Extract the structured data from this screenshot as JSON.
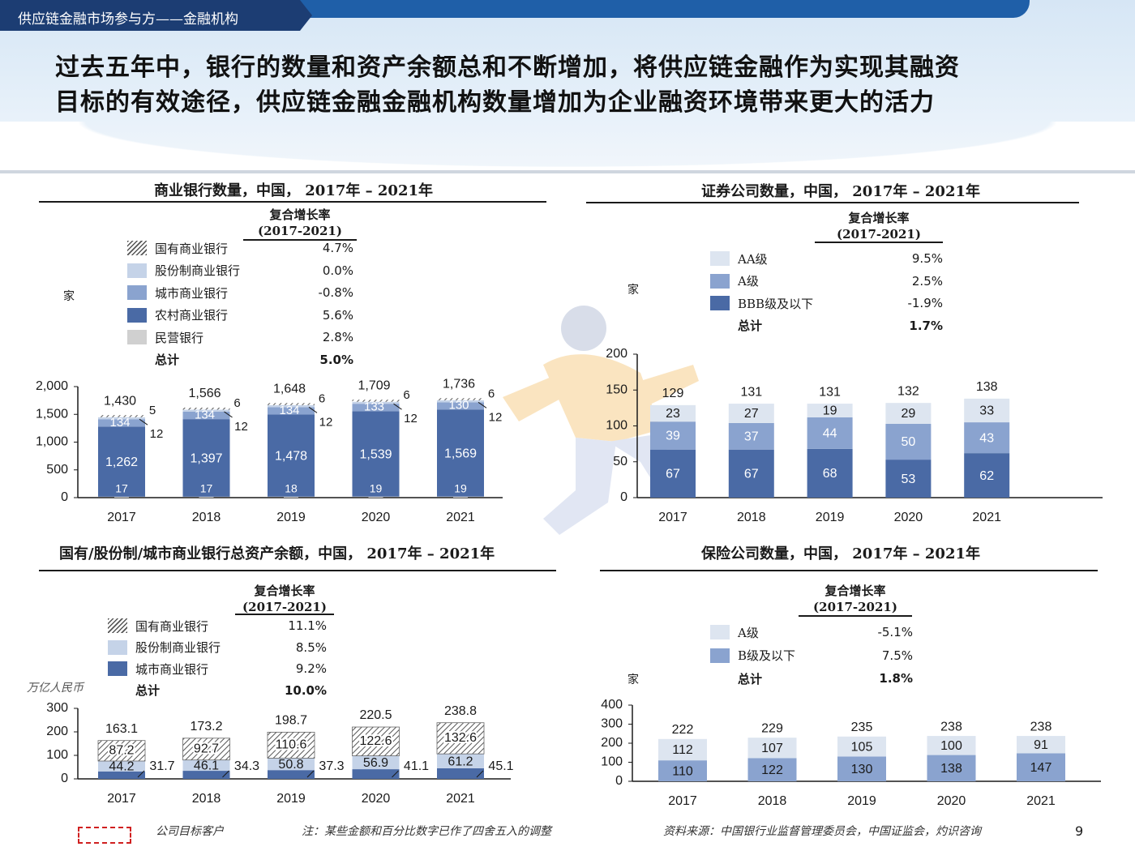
{
  "header": {
    "section": "供应链金融市场参与方——金融机构"
  },
  "headline": {
    "line1": "过去五年中，银行的数量和资产余额总和不断增加，将供应链金融作为实现其融资",
    "line2": "目标的有效途径，供应链金融金融机构数量增加为企业融资环境带来更大的活力"
  },
  "colors": {
    "dark": "#4a6aa5",
    "mid": "#8aa3cf",
    "light": "#c5d3e8",
    "lightest": "#dde5f0",
    "grey": "#d0d0d0",
    "header": "#1c3d73"
  },
  "panels": {
    "banks": {
      "cagr_head": "复合增长率",
      "cagr_period": "(2017-2021)",
      "unit": "家",
      "legend": [
        {
          "label": "国有商业银行",
          "value": "4.7%",
          "swatch": "hatch"
        },
        {
          "label": "股份制商业银行",
          "value": "0.0%",
          "swatch": "#c5d3e8"
        },
        {
          "label": "城市商业银行",
          "value": "-0.8%",
          "swatch": "#8aa3cf"
        },
        {
          "label": "农村商业银行",
          "value": "5.6%",
          "swatch": "#4a6aa5"
        },
        {
          "label": "民营银行",
          "value": "2.8%",
          "swatch": "#d0d0d0"
        },
        {
          "label": "总计",
          "value": "5.0%",
          "swatch": "none"
        }
      ]
    },
    "securities": {
      "cagr_head": "复合增长率",
      "cagr_period": "(2017-2021)",
      "unit": "家",
      "legend": [
        {
          "label": "AA级",
          "value": "9.5%",
          "swatch": "#dde5f0"
        },
        {
          "label": "A级",
          "value": "2.5%",
          "swatch": "#8aa3cf"
        },
        {
          "label": "BBB级及以下",
          "value": "-1.9%",
          "swatch": "#4a6aa5"
        },
        {
          "label": "总计",
          "value": "1.7%",
          "swatch": "none"
        }
      ]
    },
    "assets": {
      "cagr_head": "复合增长率",
      "cagr_period": "(2017-2021)",
      "unit": "万亿人民币",
      "legend": [
        {
          "label": "国有商业银行",
          "value": "11.1%",
          "swatch": "hatch"
        },
        {
          "label": "股份制商业银行",
          "value": "8.5%",
          "swatch": "#c5d3e8"
        },
        {
          "label": "城市商业银行",
          "value": "9.2%",
          "swatch": "#4a6aa5"
        },
        {
          "label": "总计",
          "value": "10.0%",
          "swatch": "none"
        }
      ]
    },
    "insurance": {
      "cagr_head": "复合增长率",
      "cagr_period": "(2017-2021)",
      "unit": "家",
      "legend": [
        {
          "label": "A级",
          "value": "-5.1%",
          "swatch": "#dde5f0"
        },
        {
          "label": "B级及以下",
          "value": "7.5%",
          "swatch": "#8aa3cf"
        },
        {
          "label": "总计",
          "value": "1.8%",
          "swatch": "none"
        }
      ]
    }
  },
  "chart_data": [
    {
      "type": "bar",
      "title": "商业银行数量，中国， 2017年 – 2021年",
      "stacked": true,
      "categories": [
        "2017",
        "2018",
        "2019",
        "2020",
        "2021"
      ],
      "ylim": [
        0,
        2000
      ],
      "yticks": [
        "0",
        "500",
        "1,000",
        "1,500",
        "2,000"
      ],
      "series": [
        {
          "name": "民营银行",
          "values": [
            17,
            17,
            18,
            19,
            19
          ]
        },
        {
          "name": "农村商业银行",
          "values": [
            1262,
            1397,
            1478,
            1539,
            1569
          ]
        },
        {
          "name": "城市商业银行",
          "values": [
            134,
            134,
            134,
            133,
            130
          ]
        },
        {
          "name": "股份制商业银行",
          "values": [
            12,
            12,
            12,
            12,
            12
          ]
        },
        {
          "name": "国有商业银行",
          "values": [
            5,
            6,
            6,
            6,
            6
          ]
        }
      ],
      "totals": [
        "1,430",
        "1,566",
        "1,648",
        "1,709",
        "1,736"
      ],
      "labels": {
        "private": [
          "17",
          "17",
          "18",
          "19",
          "19"
        ],
        "rural": [
          "1,262",
          "1,397",
          "1,478",
          "1,539",
          "1,569"
        ],
        "city": [
          "134",
          "134",
          "134",
          "133",
          "130"
        ],
        "joint": [
          "12",
          "12",
          "12",
          "12",
          "12"
        ],
        "state": [
          "5",
          "6",
          "6",
          "6",
          "6"
        ]
      }
    },
    {
      "type": "bar",
      "title": "证券公司数量，中国， 2017年 – 2021年",
      "stacked": true,
      "categories": [
        "2017",
        "2018",
        "2019",
        "2020",
        "2021"
      ],
      "ylim": [
        0,
        200
      ],
      "yticks": [
        "0",
        "50",
        "100",
        "150",
        "200"
      ],
      "series": [
        {
          "name": "BBB级及以下",
          "values": [
            67,
            67,
            68,
            53,
            62
          ]
        },
        {
          "name": "A级",
          "values": [
            39,
            37,
            44,
            50,
            43
          ]
        },
        {
          "name": "AA级",
          "values": [
            23,
            27,
            19,
            29,
            33
          ]
        }
      ],
      "totals": [
        "129",
        "131",
        "131",
        "132",
        "138"
      ]
    },
    {
      "type": "bar",
      "title": "国有/股份制/城市商业银行总资产余额，中国， 2017年 – 2021年",
      "stacked": true,
      "categories": [
        "2017",
        "2018",
        "2019",
        "2020",
        "2021"
      ],
      "ylim": [
        0,
        300
      ],
      "yticks": [
        "0",
        "100",
        "200",
        "300"
      ],
      "series": [
        {
          "name": "城市商业银行",
          "values": [
            31.7,
            34.3,
            37.3,
            41.1,
            45.1
          ]
        },
        {
          "name": "股份制商业银行",
          "values": [
            44.2,
            46.1,
            50.8,
            56.9,
            61.2
          ]
        },
        {
          "name": "国有商业银行",
          "values": [
            87.2,
            92.7,
            110.6,
            122.6,
            132.6
          ]
        }
      ],
      "totals": [
        "163.1",
        "173.2",
        "198.7",
        "220.5",
        "238.8"
      ],
      "labels": {
        "city": [
          "31.7",
          "34.3",
          "37.3",
          "41.1",
          "45.1"
        ],
        "joint": [
          "44.2",
          "46.1",
          "50.8",
          "56.9",
          "61.2"
        ],
        "state": [
          "87.2",
          "92.7",
          "110.6",
          "122.6",
          "132.6"
        ]
      }
    },
    {
      "type": "bar",
      "title": "保险公司数量，中国， 2017年 – 2021年",
      "stacked": true,
      "categories": [
        "2017",
        "2018",
        "2019",
        "2020",
        "2021"
      ],
      "ylim": [
        0,
        400
      ],
      "yticks": [
        "0",
        "100",
        "200",
        "300",
        "400"
      ],
      "series": [
        {
          "name": "B级及以下",
          "values": [
            110,
            122,
            130,
            138,
            147
          ]
        },
        {
          "name": "A级",
          "values": [
            112,
            107,
            105,
            100,
            91
          ]
        }
      ],
      "totals": [
        "222",
        "229",
        "235",
        "238",
        "238"
      ]
    }
  ],
  "footer": {
    "target_client": "公司目标客户",
    "note": "注：某些金额和百分比数字已作了四舍五入的调整",
    "source": "资料来源：中国银行业监督管理委员会，中国证监会，灼识咨询",
    "page": "9"
  }
}
